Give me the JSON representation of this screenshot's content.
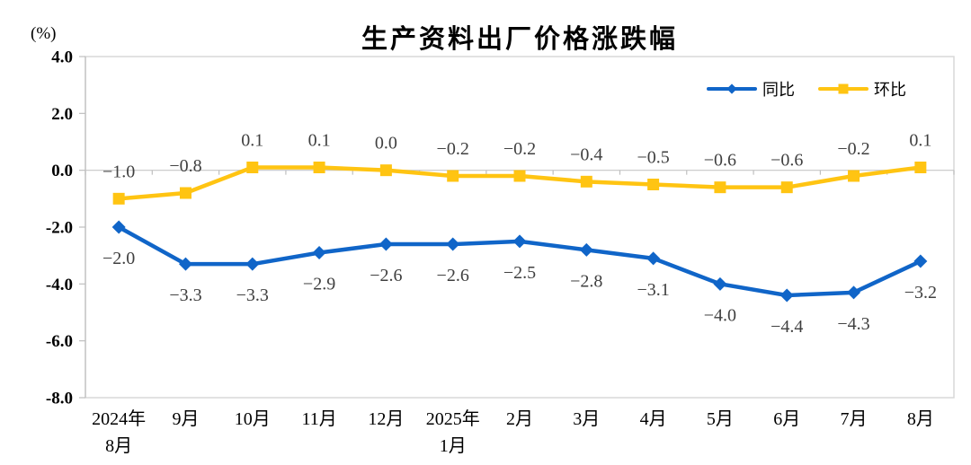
{
  "chart": {
    "title": "生产资料出厂价格涨跌幅",
    "unit": "(%)"
  },
  "legend": [
    {
      "label": "同比",
      "color": "#1065C8",
      "marker": "diamond"
    },
    {
      "label": "环比",
      "color": "#FFC412",
      "marker": "square"
    }
  ],
  "chart_data": {
    "type": "line",
    "title": "生产资料出厂价格涨跌幅",
    "ylabel": "(%)",
    "categories": [
      [
        "2024年",
        "8月"
      ],
      [
        "9月"
      ],
      [
        "10月"
      ],
      [
        "11月"
      ],
      [
        "12月"
      ],
      [
        "2025年",
        "1月"
      ],
      [
        "2月"
      ],
      [
        "3月"
      ],
      [
        "4月"
      ],
      [
        "5月"
      ],
      [
        "6月"
      ],
      [
        "7月"
      ],
      [
        "8月"
      ]
    ],
    "series": [
      {
        "name": "同比",
        "color": "#1065C8",
        "marker": "diamond",
        "label_position": "below",
        "values": [
          -2.0,
          -3.3,
          -3.3,
          -2.9,
          -2.6,
          -2.6,
          -2.5,
          -2.8,
          -3.1,
          -4.0,
          -4.4,
          -4.3,
          -3.2
        ]
      },
      {
        "name": "环比",
        "color": "#FFC412",
        "marker": "square",
        "label_position": "above",
        "values": [
          -1.0,
          -0.8,
          0.1,
          0.1,
          0.0,
          -0.2,
          -0.2,
          -0.4,
          -0.5,
          -0.6,
          -0.6,
          -0.2,
          0.1
        ]
      }
    ],
    "ylim": [
      -8.0,
      4.0
    ],
    "yticks": [
      4.0,
      2.0,
      0.0,
      -2.0,
      -4.0,
      -6.0,
      -8.0
    ],
    "grid": "zero-line-only",
    "legend_position": "top-right-inside"
  }
}
